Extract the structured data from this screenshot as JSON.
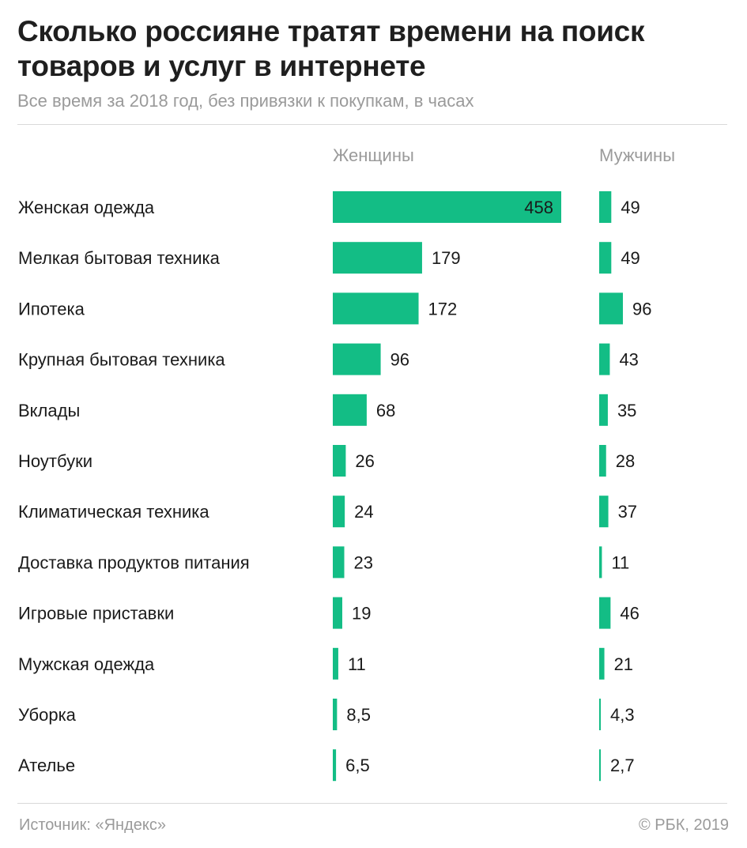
{
  "title": "Сколько россияне тратят времени на поиск товаров и услуг в интернете",
  "subtitle": "Все время за 2018 год, без привязки к покупкам, в часах",
  "source": "Источник: «Яндекс»",
  "copyright": "© РБК, 2019",
  "colors": {
    "bar": "#13bd85",
    "text": "#1a1a1a",
    "muted": "#9a9a9a"
  },
  "chart_data": {
    "type": "bar",
    "orientation": "horizontal",
    "categories": [
      "Женская одежда",
      "Мелкая бытовая техника",
      "Ипотека",
      "Крупная бытовая техника",
      "Вклады",
      "Ноутбуки",
      "Климатическая техника",
      "Доставка продуктов питания",
      "Игровые приставки",
      "Мужская одежда",
      "Уборка",
      "Ателье"
    ],
    "series": [
      {
        "name": "Женщины",
        "values": [
          458,
          179,
          172,
          96,
          68,
          26,
          24,
          23,
          19,
          11,
          8.5,
          6.5
        ],
        "labels": [
          "458",
          "179",
          "172",
          "96",
          "68",
          "26",
          "24",
          "23",
          "19",
          "11",
          "8,5",
          "6,5"
        ]
      },
      {
        "name": "Мужчины",
        "values": [
          49,
          49,
          96,
          43,
          35,
          28,
          37,
          11,
          46,
          21,
          4.3,
          2.7
        ],
        "labels": [
          "49",
          "49",
          "96",
          "43",
          "35",
          "28",
          "37",
          "11",
          "46",
          "21",
          "4,3",
          "2,7"
        ]
      }
    ],
    "legend": "column headers",
    "grid": false
  }
}
